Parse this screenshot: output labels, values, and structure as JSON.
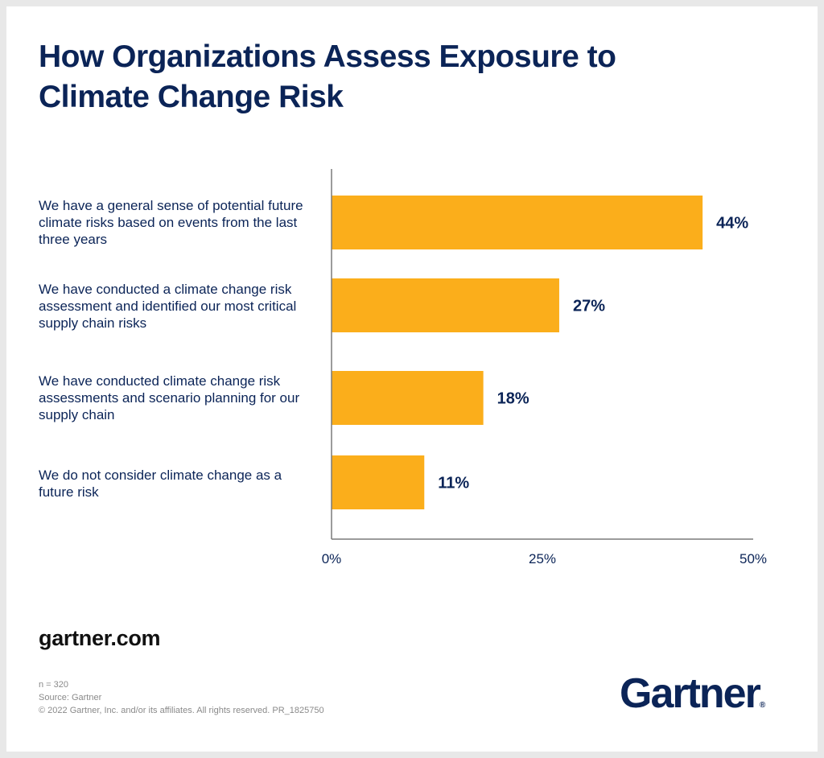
{
  "header": {
    "title": "How Organizations Assess Exposure to Climate Change Risk"
  },
  "chart_data": {
    "type": "bar",
    "orientation": "horizontal",
    "categories": [
      "We have a general sense of potential future climate risks based on events from the last three years",
      "We have conducted a climate change risk assessment and identified our most critical supply chain risks",
      "We have conducted climate change risk assessments and scenario planning for our supply chain",
      "We do not consider climate change as a future risk"
    ],
    "values": [
      44,
      27,
      18,
      11
    ],
    "value_labels": [
      "44%",
      "27%",
      "18%",
      "11%"
    ],
    "xlim": [
      0,
      50
    ],
    "x_ticks": [
      "0%",
      "25%",
      "50%"
    ],
    "grid": false,
    "bar_color": "#fbae1b"
  },
  "footer": {
    "site": "gartner.com",
    "n": "n = 320",
    "source": "Source: Gartner",
    "copyright": "© 2022 Gartner, Inc. and/or its affiliates. All rights reserved. PR_1825750",
    "logo_text": "Gartner",
    "logo_mark": "®"
  },
  "colors": {
    "text": "#0b2457",
    "bar": "#fbae1b",
    "axis": "#7a7a7a"
  }
}
